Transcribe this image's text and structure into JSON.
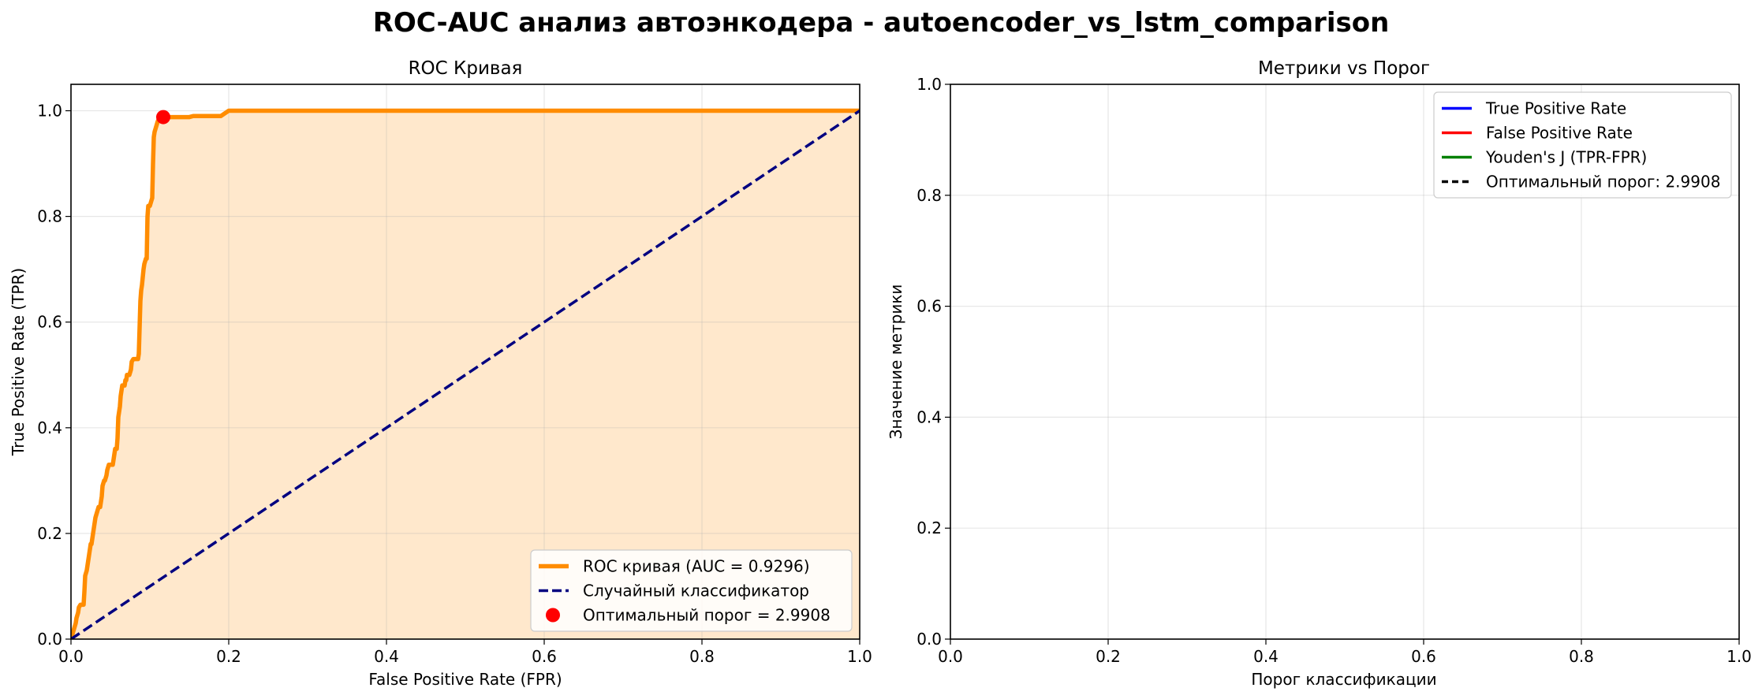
{
  "suptitle": "ROC-AUC анализ автоэнкодера - autoencoder_vs_lstm_comparison",
  "chart_data": [
    {
      "type": "line",
      "title": "ROC Кривая",
      "xlabel": "False Positive Rate (FPR)",
      "ylabel": "True Positive Rate (TPR)",
      "xlim": [
        0,
        1
      ],
      "ylim": [
        0,
        1.05
      ],
      "xticks": [
        "0.0",
        "0.2",
        "0.4",
        "0.6",
        "0.8",
        "1.0"
      ],
      "yticks": [
        "0.0",
        "0.2",
        "0.4",
        "0.6",
        "0.8",
        "1.0"
      ],
      "grid": true,
      "legend_position": "lower-right",
      "series": [
        {
          "name": "ROC кривая (AUC = 0.9296)",
          "color": "#ff8c00",
          "style": "solid",
          "fill": "#ffe8cc",
          "x": [
            0,
            0.002,
            0.004,
            0.006,
            0.007,
            0.009,
            0.01,
            0.012,
            0.014,
            0.016,
            0.017,
            0.018,
            0.02,
            0.022,
            0.023,
            0.025,
            0.026,
            0.028,
            0.03,
            0.031,
            0.033,
            0.035,
            0.036,
            0.037,
            0.039,
            0.04,
            0.042,
            0.043,
            0.045,
            0.046,
            0.048,
            0.05,
            0.051,
            0.053,
            0.055,
            0.056,
            0.058,
            0.059,
            0.06,
            0.062,
            0.063,
            0.065,
            0.066,
            0.068,
            0.069,
            0.07,
            0.071,
            0.073,
            0.074,
            0.076,
            0.077,
            0.079,
            0.08,
            0.082,
            0.083,
            0.085,
            0.086,
            0.088,
            0.089,
            0.09,
            0.092,
            0.093,
            0.095,
            0.096,
            0.097,
            0.098,
            0.1,
            0.101,
            0.102,
            0.103,
            0.104,
            0.105,
            0.106,
            0.107,
            0.108,
            0.109,
            0.11,
            0.111,
            0.112,
            0.113,
            0.114,
            0.115,
            0.116,
            0.117,
            0.118,
            0.12,
            0.125,
            0.13,
            0.14,
            0.15,
            0.155,
            0.17,
            0.18,
            0.19,
            0.195,
            0.2,
            0.25,
            0.3,
            0.4,
            0.5,
            0.6,
            0.7,
            0.8,
            0.9,
            1.0
          ],
          "y": [
            0,
            0.01,
            0.02,
            0.03,
            0.04,
            0.05,
            0.06,
            0.065,
            0.065,
            0.065,
            0.09,
            0.12,
            0.13,
            0.15,
            0.16,
            0.18,
            0.18,
            0.2,
            0.22,
            0.23,
            0.24,
            0.25,
            0.25,
            0.25,
            0.27,
            0.29,
            0.3,
            0.3,
            0.31,
            0.32,
            0.33,
            0.33,
            0.33,
            0.33,
            0.35,
            0.36,
            0.36,
            0.38,
            0.42,
            0.44,
            0.46,
            0.48,
            0.48,
            0.48,
            0.49,
            0.49,
            0.5,
            0.5,
            0.5,
            0.51,
            0.525,
            0.53,
            0.53,
            0.53,
            0.53,
            0.53,
            0.54,
            0.64,
            0.66,
            0.67,
            0.7,
            0.71,
            0.72,
            0.72,
            0.8,
            0.82,
            0.82,
            0.825,
            0.83,
            0.835,
            0.9,
            0.95,
            0.96,
            0.965,
            0.97,
            0.975,
            0.98,
            0.983,
            0.985,
            0.986,
            0.987,
            0.988,
            0.988,
            0.988,
            0.988,
            0.988,
            0.988,
            0.988,
            0.988,
            0.988,
            0.99,
            0.99,
            0.99,
            0.99,
            0.995,
            1.0,
            1.0,
            1.0,
            1.0,
            1.0,
            1.0,
            1.0,
            1.0,
            1.0,
            1.0
          ]
        },
        {
          "name": "Случайный классификатор",
          "color": "#000080",
          "style": "dashed",
          "x": [
            0,
            1
          ],
          "y": [
            0,
            1
          ]
        },
        {
          "name": "Оптимальный порог = 2.9908",
          "color": "#ff0000",
          "style": "marker",
          "x": [
            0.117
          ],
          "y": [
            0.988
          ]
        }
      ]
    },
    {
      "type": "line",
      "title": "Метрики vs Порог",
      "xlabel": "Порог классификации",
      "ylabel": "Значение метрики",
      "xlim": [
        0,
        1
      ],
      "ylim": [
        0,
        1
      ],
      "xticks": [
        "0.0",
        "0.2",
        "0.4",
        "0.6",
        "0.8",
        "1.0"
      ],
      "yticks": [
        "0.0",
        "0.2",
        "0.4",
        "0.6",
        "0.8",
        "1.0"
      ],
      "grid": true,
      "legend_position": "upper-right",
      "series": [
        {
          "name": "True Positive Rate",
          "color": "#0000ff",
          "style": "solid",
          "x": [],
          "y": []
        },
        {
          "name": "False Positive Rate",
          "color": "#ff0000",
          "style": "solid",
          "x": [],
          "y": []
        },
        {
          "name": "Youden's J (TPR-FPR)",
          "color": "#008000",
          "style": "solid",
          "x": [],
          "y": []
        },
        {
          "name": "Оптимальный порог: 2.9908",
          "color": "#000000",
          "style": "dashed",
          "x": [],
          "y": []
        }
      ]
    }
  ]
}
